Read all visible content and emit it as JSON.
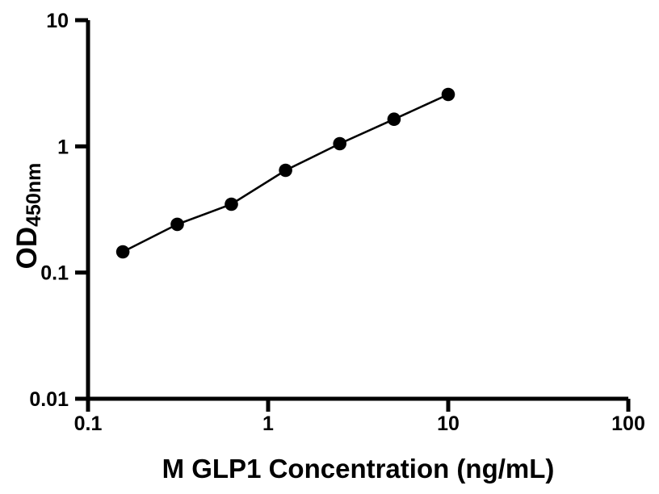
{
  "page": {
    "background": "#ffffff"
  },
  "chart_data": {
    "type": "scatter",
    "title": "",
    "xlabel": "M GLP1 Concentration (ng/mL)",
    "ylabel": {
      "main": "OD",
      "subscript": "450nm"
    },
    "xscale": "log",
    "yscale": "log",
    "xlim": [
      0.1,
      100
    ],
    "ylim": [
      0.01,
      10
    ],
    "xticks": {
      "values": [
        0.1,
        1,
        10,
        100
      ],
      "labels": [
        "0.1",
        "1",
        "10",
        "100"
      ]
    },
    "yticks": {
      "values": [
        0.01,
        0.1,
        1,
        10
      ],
      "labels": [
        "0.01",
        "0.1",
        "1",
        "10"
      ]
    },
    "grid": false,
    "legend": false,
    "axis_color": "#000000",
    "text_color": "#000000",
    "series": [
      {
        "name": "glp1-standard-curve",
        "marker": "circle",
        "marker_color": "#000000",
        "line_color": "#000000",
        "x": [
          0.156,
          0.313,
          0.625,
          1.25,
          2.5,
          5,
          10
        ],
        "y": [
          0.146,
          0.241,
          0.348,
          0.646,
          1.05,
          1.64,
          2.58
        ]
      }
    ]
  }
}
